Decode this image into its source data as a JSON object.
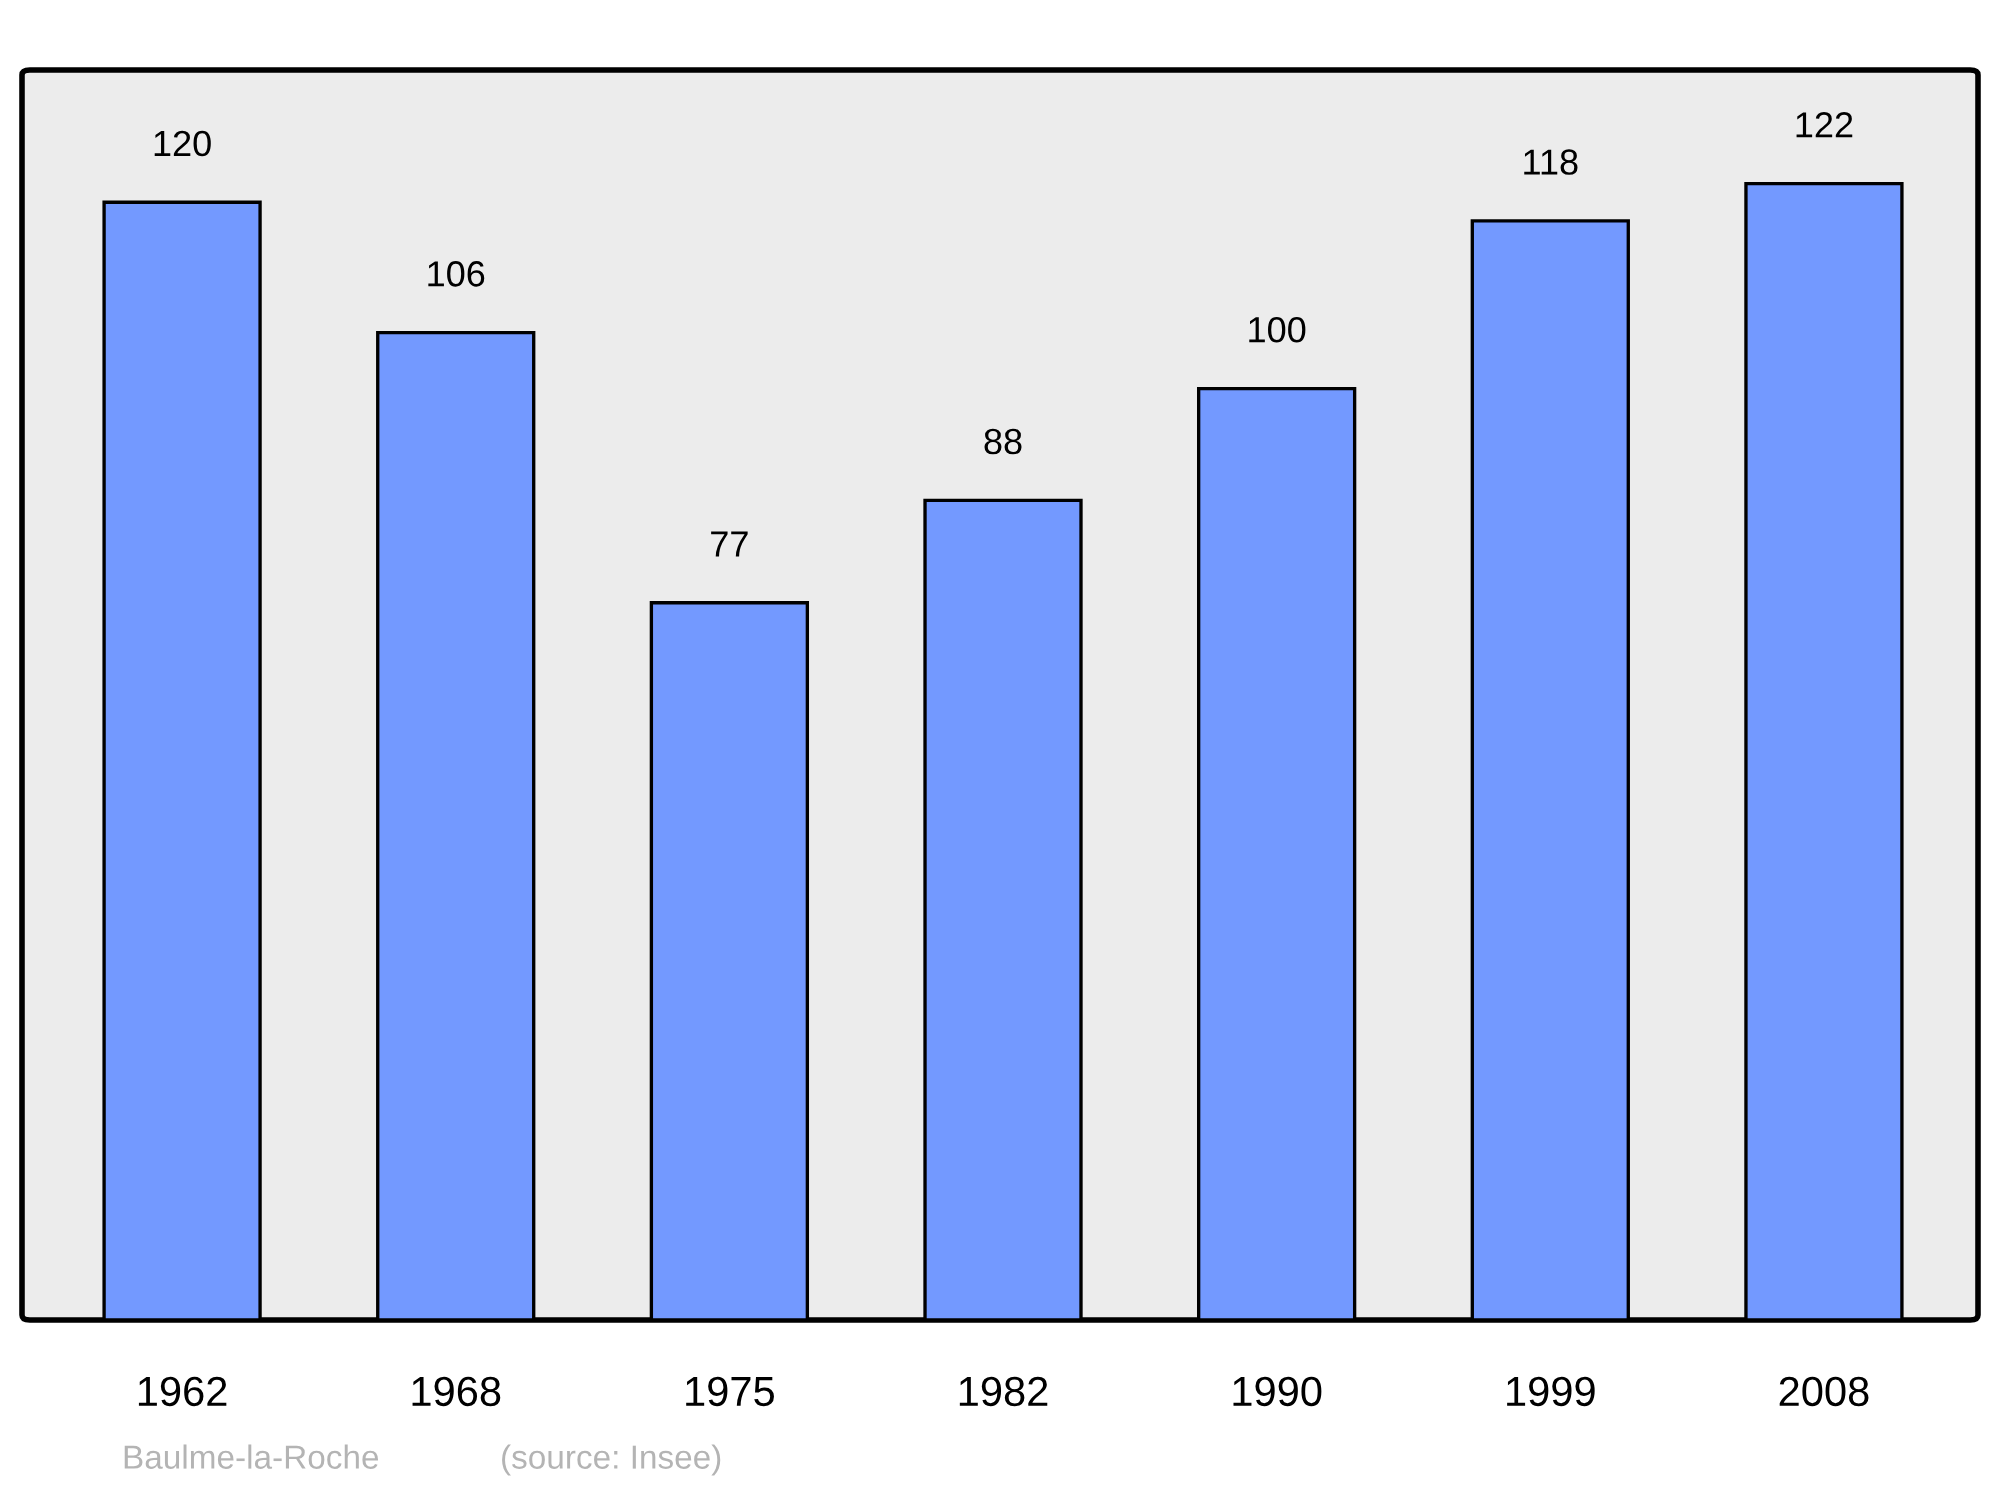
{
  "chart_data": {
    "type": "bar",
    "categories": [
      "1962",
      "1968",
      "1975",
      "1982",
      "1990",
      "1999",
      "2008"
    ],
    "values": [
      120,
      106,
      77,
      88,
      100,
      118,
      122
    ],
    "color": "#7399ff",
    "data_labels": true,
    "grid": false,
    "tick_labels": "x",
    "annotations": [
      "Baulme-la-Roche",
      "(source: Insee)"
    ]
  }
}
